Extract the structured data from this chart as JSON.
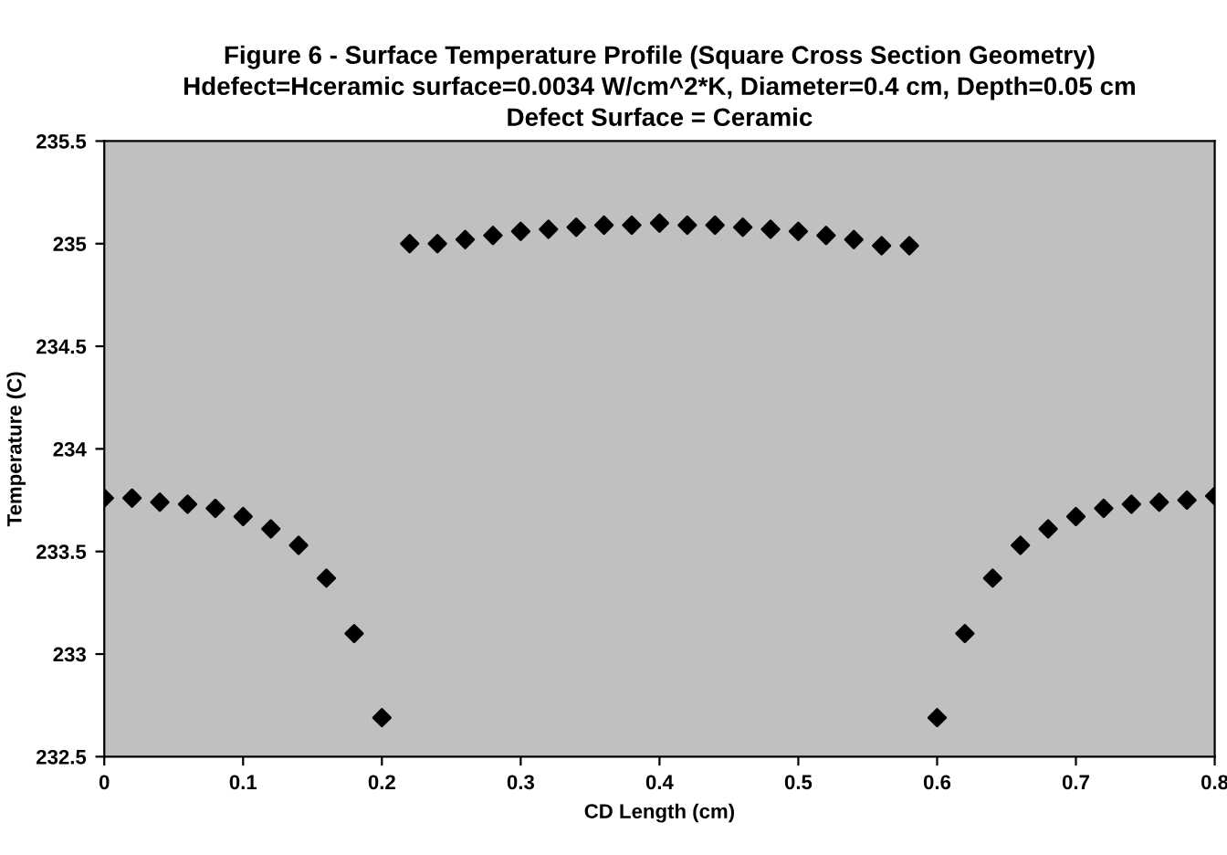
{
  "chart_data": {
    "type": "scatter",
    "title": "Figure 6 - Surface Temperature Profile (Square Cross Section Geometry)\nHdefect=Hceramic surface=0.0034 W/cm^2*K, Diameter=0.4 cm, Depth=0.05 cm\nDefect Surface = Ceramic",
    "xlabel": "CD Length (cm)",
    "ylabel": "Temperature (C)",
    "x": [
      0,
      0.02,
      0.04,
      0.06,
      0.08,
      0.1,
      0.12,
      0.14,
      0.16,
      0.18,
      0.2,
      0.22,
      0.24,
      0.26,
      0.28,
      0.3,
      0.32,
      0.34,
      0.36,
      0.38,
      0.4,
      0.42,
      0.44,
      0.46,
      0.48,
      0.5,
      0.52,
      0.54,
      0.56,
      0.58,
      0.6,
      0.62,
      0.64,
      0.66,
      0.68,
      0.7,
      0.72,
      0.74,
      0.76,
      0.78,
      0.8
    ],
    "series": [
      {
        "color": "#000000",
        "values": [
          233.76,
          233.76,
          233.74,
          233.73,
          233.71,
          233.67,
          233.61,
          233.53,
          233.37,
          233.1,
          232.69,
          235.0,
          235.0,
          235.02,
          235.04,
          235.06,
          235.07,
          235.08,
          235.09,
          235.09,
          235.1,
          235.09,
          235.09,
          235.08,
          235.07,
          235.06,
          235.04,
          235.02,
          234.99,
          234.99,
          232.69,
          233.1,
          233.37,
          233.53,
          233.61,
          233.67,
          233.71,
          233.73,
          233.74,
          233.75,
          233.77
        ]
      }
    ],
    "xlim": [
      0,
      0.8
    ],
    "xticks": [
      0,
      0.1,
      0.2,
      0.3,
      0.4,
      0.5,
      0.6,
      0.7,
      0.8
    ],
    "ylim": [
      232.5,
      235.5
    ],
    "yticks": [
      232.5,
      233,
      233.5,
      234,
      234.5,
      235,
      235.5
    ],
    "marker": "diamond",
    "grid": false,
    "legend": false
  }
}
